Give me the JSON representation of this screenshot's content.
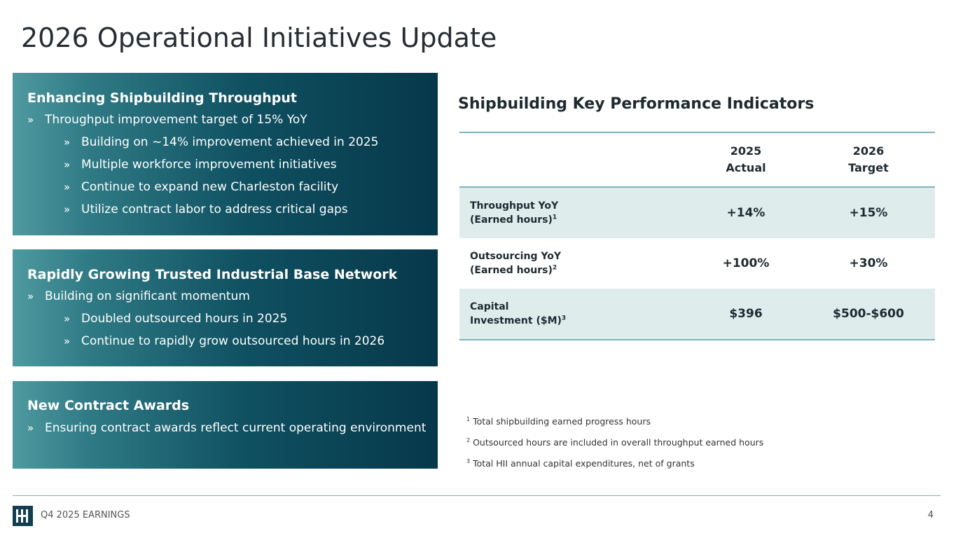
{
  "page": {
    "title": "2026 Operational Initiatives Update"
  },
  "panels": [
    {
      "heading": "Enhancing Shipbuilding Throughput",
      "bullets": [
        {
          "text": "Throughput improvement target of 15% YoY"
        },
        {
          "text": "Building on ~14% improvement achieved in 2025"
        },
        {
          "text": "Multiple workforce improvement initiatives"
        },
        {
          "text": "Continue to expand new Charleston facility"
        },
        {
          "text": "Utilize contract labor to address critical gaps"
        }
      ]
    },
    {
      "heading": "Rapidly Growing Trusted Industrial Base Network",
      "bullets": [
        {
          "text": "Building on significant momentum"
        },
        {
          "text": "Doubled outsourced hours in 2025"
        },
        {
          "text": "Continue to rapidly grow outsourced hours in 2026"
        }
      ]
    },
    {
      "heading": "New Contract Awards",
      "bullets": [
        {
          "text": "Ensuring contract awards reflect current operating environment"
        }
      ]
    }
  ],
  "bullet_mark": "»",
  "kpi": {
    "title": "Shipbuilding Key Performance Indicators",
    "columns": [
      {
        "line1": "2025",
        "line2": "Actual"
      },
      {
        "line1": "2026",
        "line2": "Target"
      }
    ],
    "rows": [
      {
        "label1": "Throughput YoY",
        "label2": "(Earned hours)",
        "sup": "1",
        "actual": "+14%",
        "target": "+15%"
      },
      {
        "label1": "Outsourcing YoY",
        "label2": "(Earned hours)",
        "sup": "2",
        "actual": "+100%",
        "target": "+30%"
      },
      {
        "label1": "Capital",
        "label2": "Investment ($M)",
        "sup": "3",
        "actual": "$396",
        "target": "$500-$600"
      }
    ]
  },
  "footnotes": [
    {
      "num": "1",
      "text": "Total shipbuilding earned progress hours"
    },
    {
      "num": "2",
      "text": "Outsourced hours are included in overall throughput earned hours"
    },
    {
      "num": "3",
      "text": "Total HII annual capital expenditures, net of grants"
    }
  ],
  "footer": {
    "label": "Q4 2025 EARNINGS",
    "page_number": "4"
  },
  "colors": {
    "panel_dark": "#06384a",
    "panel_light": "#4f9aa0",
    "table_shade": "#deecec",
    "rule": "#7fb3ba"
  }
}
